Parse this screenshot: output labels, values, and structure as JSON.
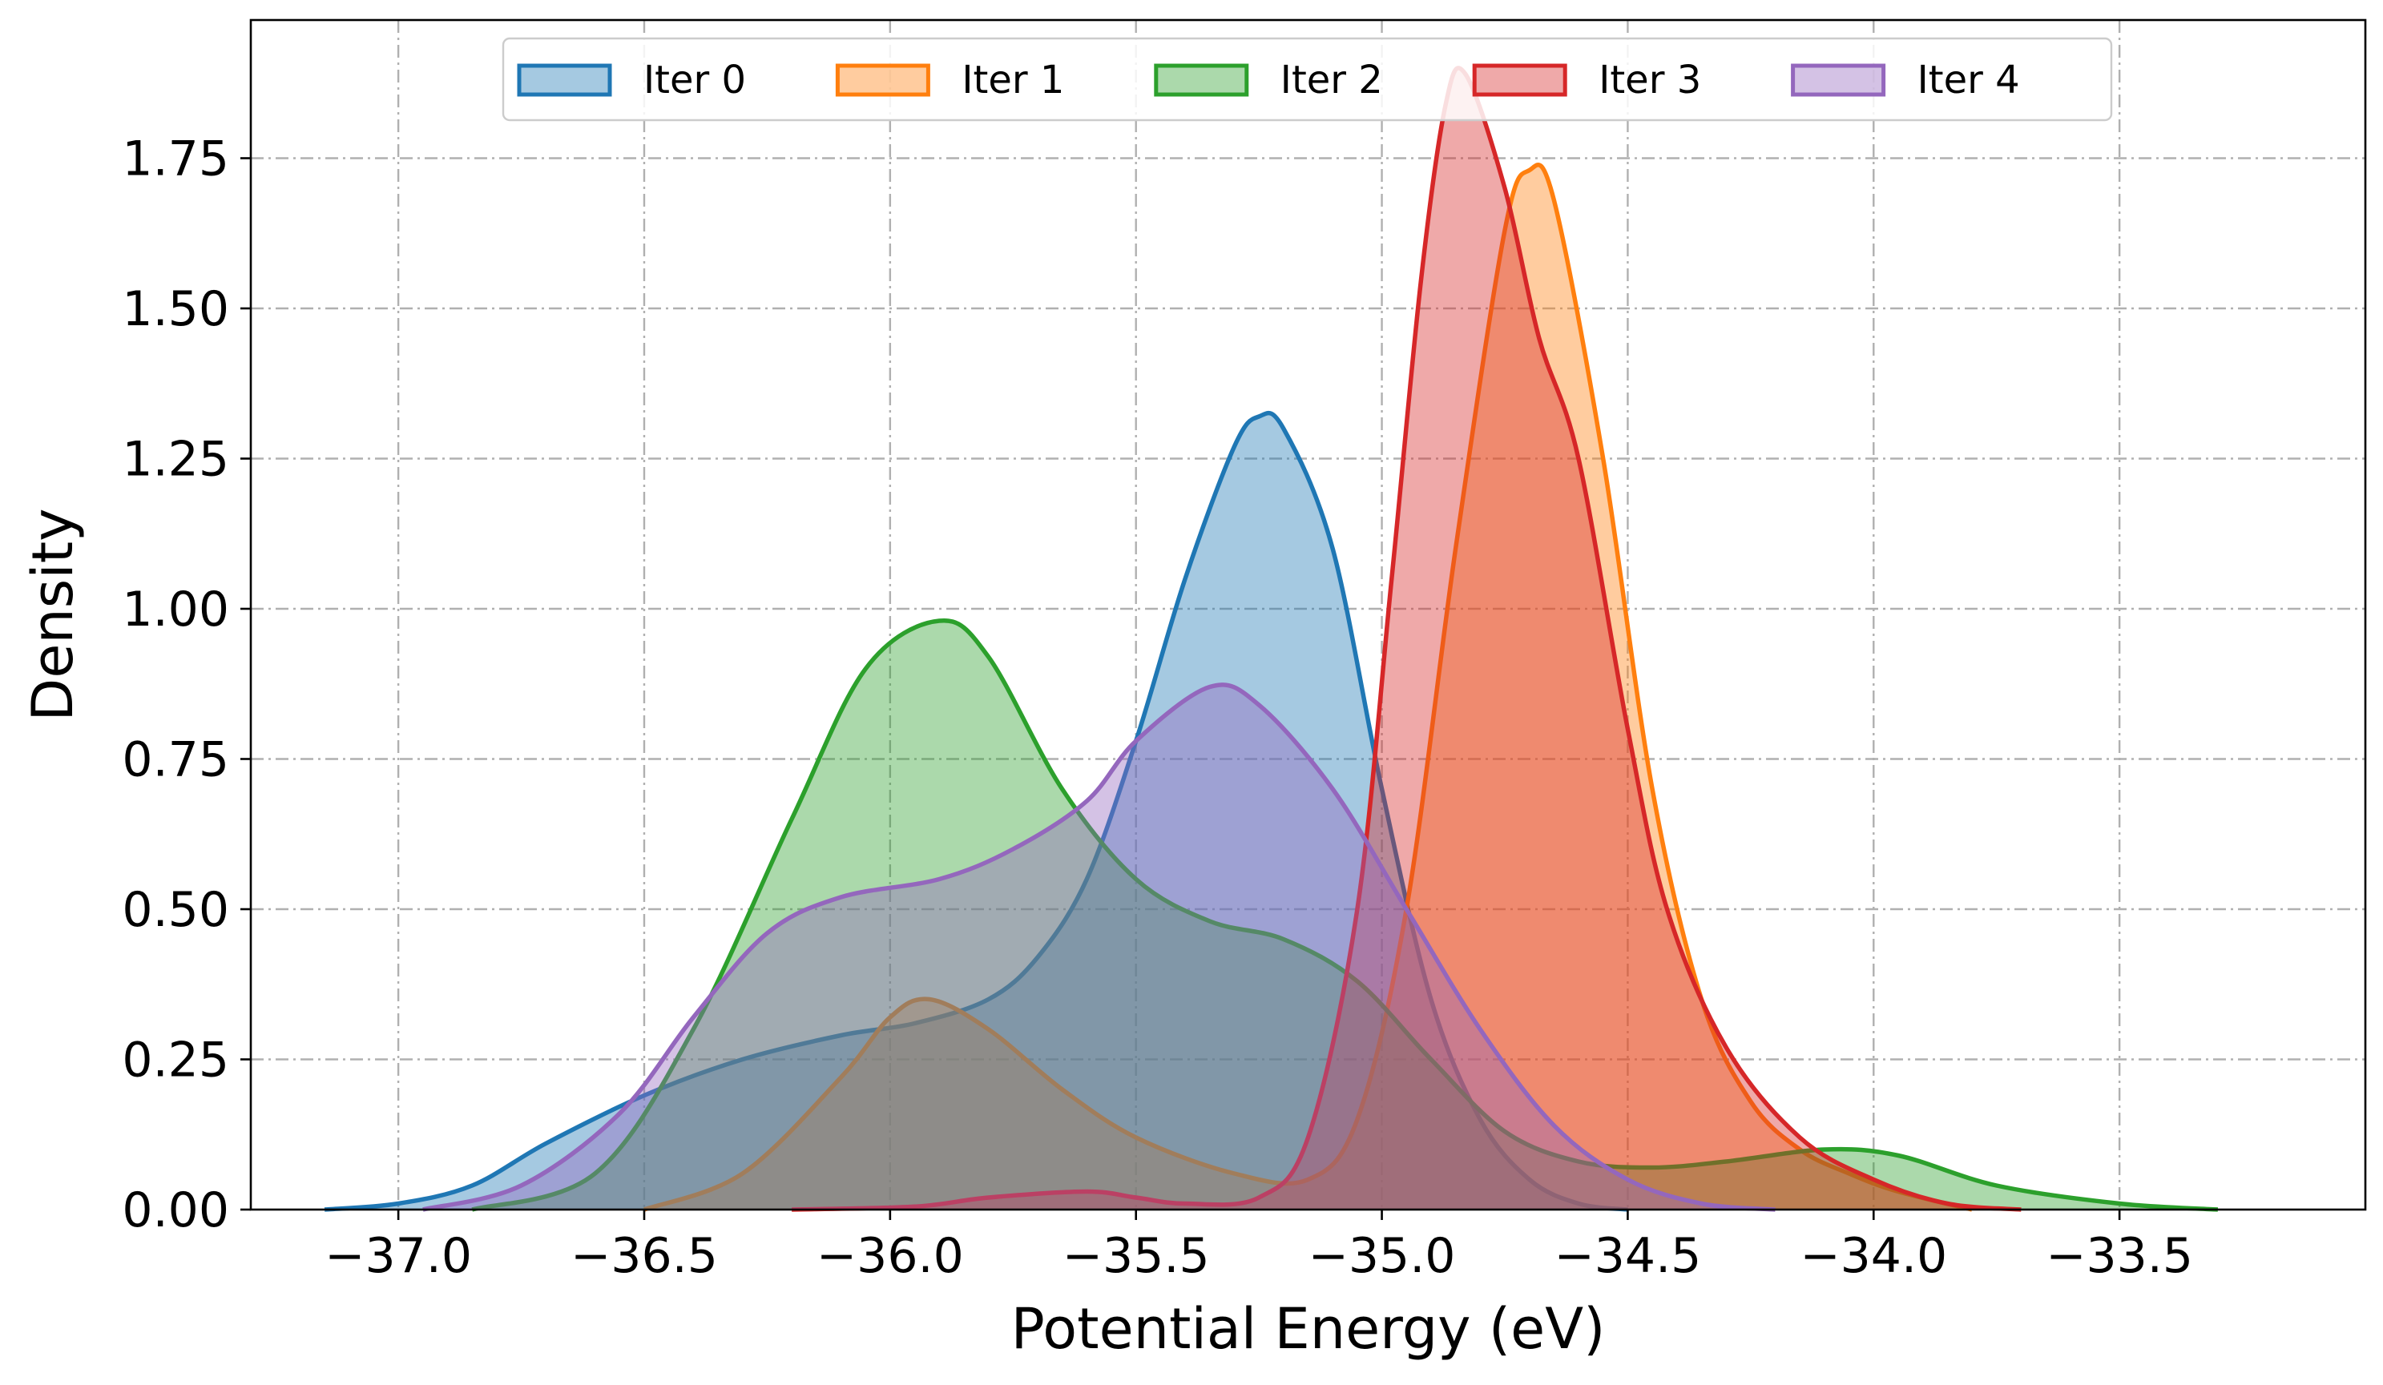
{
  "chart_data": {
    "type": "area",
    "xlabel": "Potential Energy (eV)",
    "ylabel": "Density",
    "xlim": [
      -37.3,
      -33.0
    ],
    "ylim": [
      0,
      1.98
    ],
    "xticks": [
      -37.0,
      -36.5,
      -36.0,
      -35.5,
      -35.0,
      -34.5,
      -34.0,
      -33.5
    ],
    "xtick_labels": [
      "−37.0",
      "−36.5",
      "−36.0",
      "−35.5",
      "−35.0",
      "−34.5",
      "−34.0",
      "−33.5"
    ],
    "yticks": [
      0,
      0.25,
      0.5,
      0.75,
      1.0,
      1.25,
      1.5,
      1.75
    ],
    "ytick_labels": [
      "0.00",
      "0.25",
      "0.50",
      "0.75",
      "1.00",
      "1.25",
      "1.50",
      "1.75"
    ],
    "grid": true,
    "legend_position": "top-center",
    "series": [
      {
        "name": "Iter 0",
        "color": "#1f77b4",
        "points": [
          [
            -37.15,
            0.0
          ],
          [
            -37.0,
            0.01
          ],
          [
            -36.85,
            0.04
          ],
          [
            -36.7,
            0.11
          ],
          [
            -36.5,
            0.19
          ],
          [
            -36.3,
            0.25
          ],
          [
            -36.1,
            0.29
          ],
          [
            -35.95,
            0.31
          ],
          [
            -35.8,
            0.35
          ],
          [
            -35.7,
            0.42
          ],
          [
            -35.6,
            0.55
          ],
          [
            -35.5,
            0.78
          ],
          [
            -35.4,
            1.05
          ],
          [
            -35.3,
            1.27
          ],
          [
            -35.25,
            1.32
          ],
          [
            -35.2,
            1.3
          ],
          [
            -35.1,
            1.1
          ],
          [
            -35.0,
            0.7
          ],
          [
            -34.9,
            0.35
          ],
          [
            -34.8,
            0.15
          ],
          [
            -34.7,
            0.05
          ],
          [
            -34.6,
            0.01
          ],
          [
            -34.5,
            0.0
          ]
        ]
      },
      {
        "name": "Iter 1",
        "color": "#ff7f0e",
        "points": [
          [
            -36.5,
            0.0
          ],
          [
            -36.3,
            0.06
          ],
          [
            -36.1,
            0.22
          ],
          [
            -36.0,
            0.32
          ],
          [
            -35.92,
            0.35
          ],
          [
            -35.8,
            0.3
          ],
          [
            -35.65,
            0.2
          ],
          [
            -35.5,
            0.12
          ],
          [
            -35.3,
            0.06
          ],
          [
            -35.15,
            0.05
          ],
          [
            -35.05,
            0.15
          ],
          [
            -34.95,
            0.5
          ],
          [
            -34.85,
            1.1
          ],
          [
            -34.75,
            1.63
          ],
          [
            -34.7,
            1.73
          ],
          [
            -34.65,
            1.68
          ],
          [
            -34.55,
            1.25
          ],
          [
            -34.45,
            0.7
          ],
          [
            -34.35,
            0.35
          ],
          [
            -34.25,
            0.18
          ],
          [
            -34.15,
            0.1
          ],
          [
            -34.05,
            0.06
          ],
          [
            -33.95,
            0.03
          ],
          [
            -33.8,
            0.0
          ]
        ]
      },
      {
        "name": "Iter 2",
        "color": "#2ca02c",
        "points": [
          [
            -36.85,
            0.0
          ],
          [
            -36.6,
            0.06
          ],
          [
            -36.4,
            0.3
          ],
          [
            -36.2,
            0.65
          ],
          [
            -36.05,
            0.9
          ],
          [
            -35.9,
            0.98
          ],
          [
            -35.8,
            0.92
          ],
          [
            -35.65,
            0.7
          ],
          [
            -35.5,
            0.55
          ],
          [
            -35.35,
            0.48
          ],
          [
            -35.2,
            0.45
          ],
          [
            -35.05,
            0.38
          ],
          [
            -34.9,
            0.25
          ],
          [
            -34.75,
            0.13
          ],
          [
            -34.6,
            0.08
          ],
          [
            -34.45,
            0.07
          ],
          [
            -34.3,
            0.08
          ],
          [
            -34.1,
            0.1
          ],
          [
            -33.95,
            0.09
          ],
          [
            -33.75,
            0.04
          ],
          [
            -33.5,
            0.01
          ],
          [
            -33.3,
            0.0
          ]
        ]
      },
      {
        "name": "Iter 3",
        "color": "#d62728",
        "points": [
          [
            -36.2,
            0.0
          ],
          [
            -35.95,
            0.005
          ],
          [
            -35.8,
            0.02
          ],
          [
            -35.6,
            0.03
          ],
          [
            -35.5,
            0.02
          ],
          [
            -35.4,
            0.01
          ],
          [
            -35.25,
            0.02
          ],
          [
            -35.15,
            0.12
          ],
          [
            -35.05,
            0.5
          ],
          [
            -34.98,
            1.05
          ],
          [
            -34.92,
            1.55
          ],
          [
            -34.87,
            1.84
          ],
          [
            -34.83,
            1.89
          ],
          [
            -34.75,
            1.7
          ],
          [
            -34.68,
            1.45
          ],
          [
            -34.6,
            1.25
          ],
          [
            -34.5,
            0.8
          ],
          [
            -34.42,
            0.5
          ],
          [
            -34.3,
            0.27
          ],
          [
            -34.15,
            0.12
          ],
          [
            -34.0,
            0.05
          ],
          [
            -33.85,
            0.01
          ],
          [
            -33.7,
            0.0
          ]
        ]
      },
      {
        "name": "Iter 4",
        "color": "#9467bd",
        "points": [
          [
            -36.95,
            0.0
          ],
          [
            -36.75,
            0.04
          ],
          [
            -36.55,
            0.16
          ],
          [
            -36.4,
            0.32
          ],
          [
            -36.25,
            0.46
          ],
          [
            -36.1,
            0.52
          ],
          [
            -35.9,
            0.55
          ],
          [
            -35.75,
            0.6
          ],
          [
            -35.6,
            0.68
          ],
          [
            -35.5,
            0.78
          ],
          [
            -35.35,
            0.87
          ],
          [
            -35.25,
            0.84
          ],
          [
            -35.1,
            0.7
          ],
          [
            -34.95,
            0.5
          ],
          [
            -34.8,
            0.3
          ],
          [
            -34.65,
            0.14
          ],
          [
            -34.5,
            0.05
          ],
          [
            -34.35,
            0.01
          ],
          [
            -34.2,
            0.0
          ]
        ]
      }
    ]
  }
}
